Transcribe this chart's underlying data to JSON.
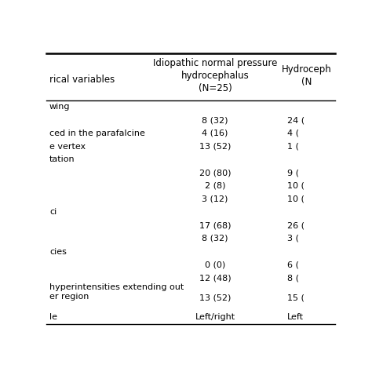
{
  "col_headers": [
    "rical variables",
    "Idiopathic normal pressure\nhydrocephalus\n(N=25)",
    "Hydroceph\n(N"
  ],
  "rows": [
    {
      "label": "wing",
      "col1": "",
      "col2": "",
      "is_section": true,
      "multiline": false
    },
    {
      "label": "",
      "col1": "8 (32)",
      "col2": "24 (",
      "is_section": false,
      "multiline": false
    },
    {
      "label": "ced in the parafalcine",
      "col1": "4 (16)",
      "col2": "4 (",
      "is_section": false,
      "multiline": false
    },
    {
      "label": "e vertex",
      "col1": "13 (52)",
      "col2": "1 (",
      "is_section": false,
      "multiline": false
    },
    {
      "label": "tation",
      "col1": "",
      "col2": "",
      "is_section": true,
      "multiline": false
    },
    {
      "label": "",
      "col1": "20 (80)",
      "col2": "9 (",
      "is_section": false,
      "multiline": false
    },
    {
      "label": "",
      "col1": "2 (8)",
      "col2": "10 (",
      "is_section": false,
      "multiline": false
    },
    {
      "label": "",
      "col1": "3 (12)",
      "col2": "10 (",
      "is_section": false,
      "multiline": false
    },
    {
      "label": "ci",
      "col1": "",
      "col2": "",
      "is_section": true,
      "multiline": false
    },
    {
      "label": "",
      "col1": "17 (68)",
      "col2": "26 (",
      "is_section": false,
      "multiline": false
    },
    {
      "label": "",
      "col1": "8 (32)",
      "col2": "3 (",
      "is_section": false,
      "multiline": false
    },
    {
      "label": "cies",
      "col1": "",
      "col2": "",
      "is_section": true,
      "multiline": false
    },
    {
      "label": "",
      "col1": "0 (0)",
      "col2": "6 (",
      "is_section": false,
      "multiline": false
    },
    {
      "label": "",
      "col1": "12 (48)",
      "col2": "8 (",
      "is_section": false,
      "multiline": false
    },
    {
      "label": "hyperintensities extending out\ner region",
      "col1": "13 (52)",
      "col2": "15 (",
      "is_section": false,
      "multiline": true
    },
    {
      "label": "le",
      "col1": "Left/right",
      "col2": "Left",
      "is_section": false,
      "multiline": false
    }
  ],
  "bg_color": "#ffffff",
  "line_color": "#000000",
  "text_color": "#000000",
  "font_size": 8.0,
  "header_font_size": 8.5,
  "fig_width": 4.74,
  "fig_height": 4.74,
  "dpi": 100
}
